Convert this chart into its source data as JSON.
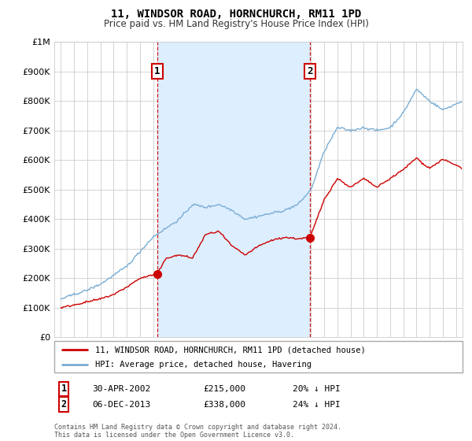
{
  "title": "11, WINDSOR ROAD, HORNCHURCH, RM11 1PD",
  "subtitle": "Price paid vs. HM Land Registry's House Price Index (HPI)",
  "legend_line1": "11, WINDSOR ROAD, HORNCHURCH, RM11 1PD (detached house)",
  "legend_line2": "HPI: Average price, detached house, Havering",
  "sale1_label": "1",
  "sale1_date": "30-APR-2002",
  "sale1_price": "£215,000",
  "sale1_hpi": "20% ↓ HPI",
  "sale1_year": 2002.33,
  "sale1_value": 215000,
  "sale2_label": "2",
  "sale2_date": "06-DEC-2013",
  "sale2_price": "£338,000",
  "sale2_hpi": "24% ↓ HPI",
  "sale2_year": 2013.92,
  "sale2_value": 338000,
  "red_color": "#cc0000",
  "blue_color": "#7aadd4",
  "shade_color": "#ddeeff",
  "annotation_box_color": "#cc0000",
  "grid_color": "#cccccc",
  "background_color": "#ffffff",
  "footer_text": "Contains HM Land Registry data © Crown copyright and database right 2024.\nThis data is licensed under the Open Government Licence v3.0.",
  "ylim": [
    0,
    1000000
  ],
  "xlim_start": 1994.5,
  "xlim_end": 2025.5
}
